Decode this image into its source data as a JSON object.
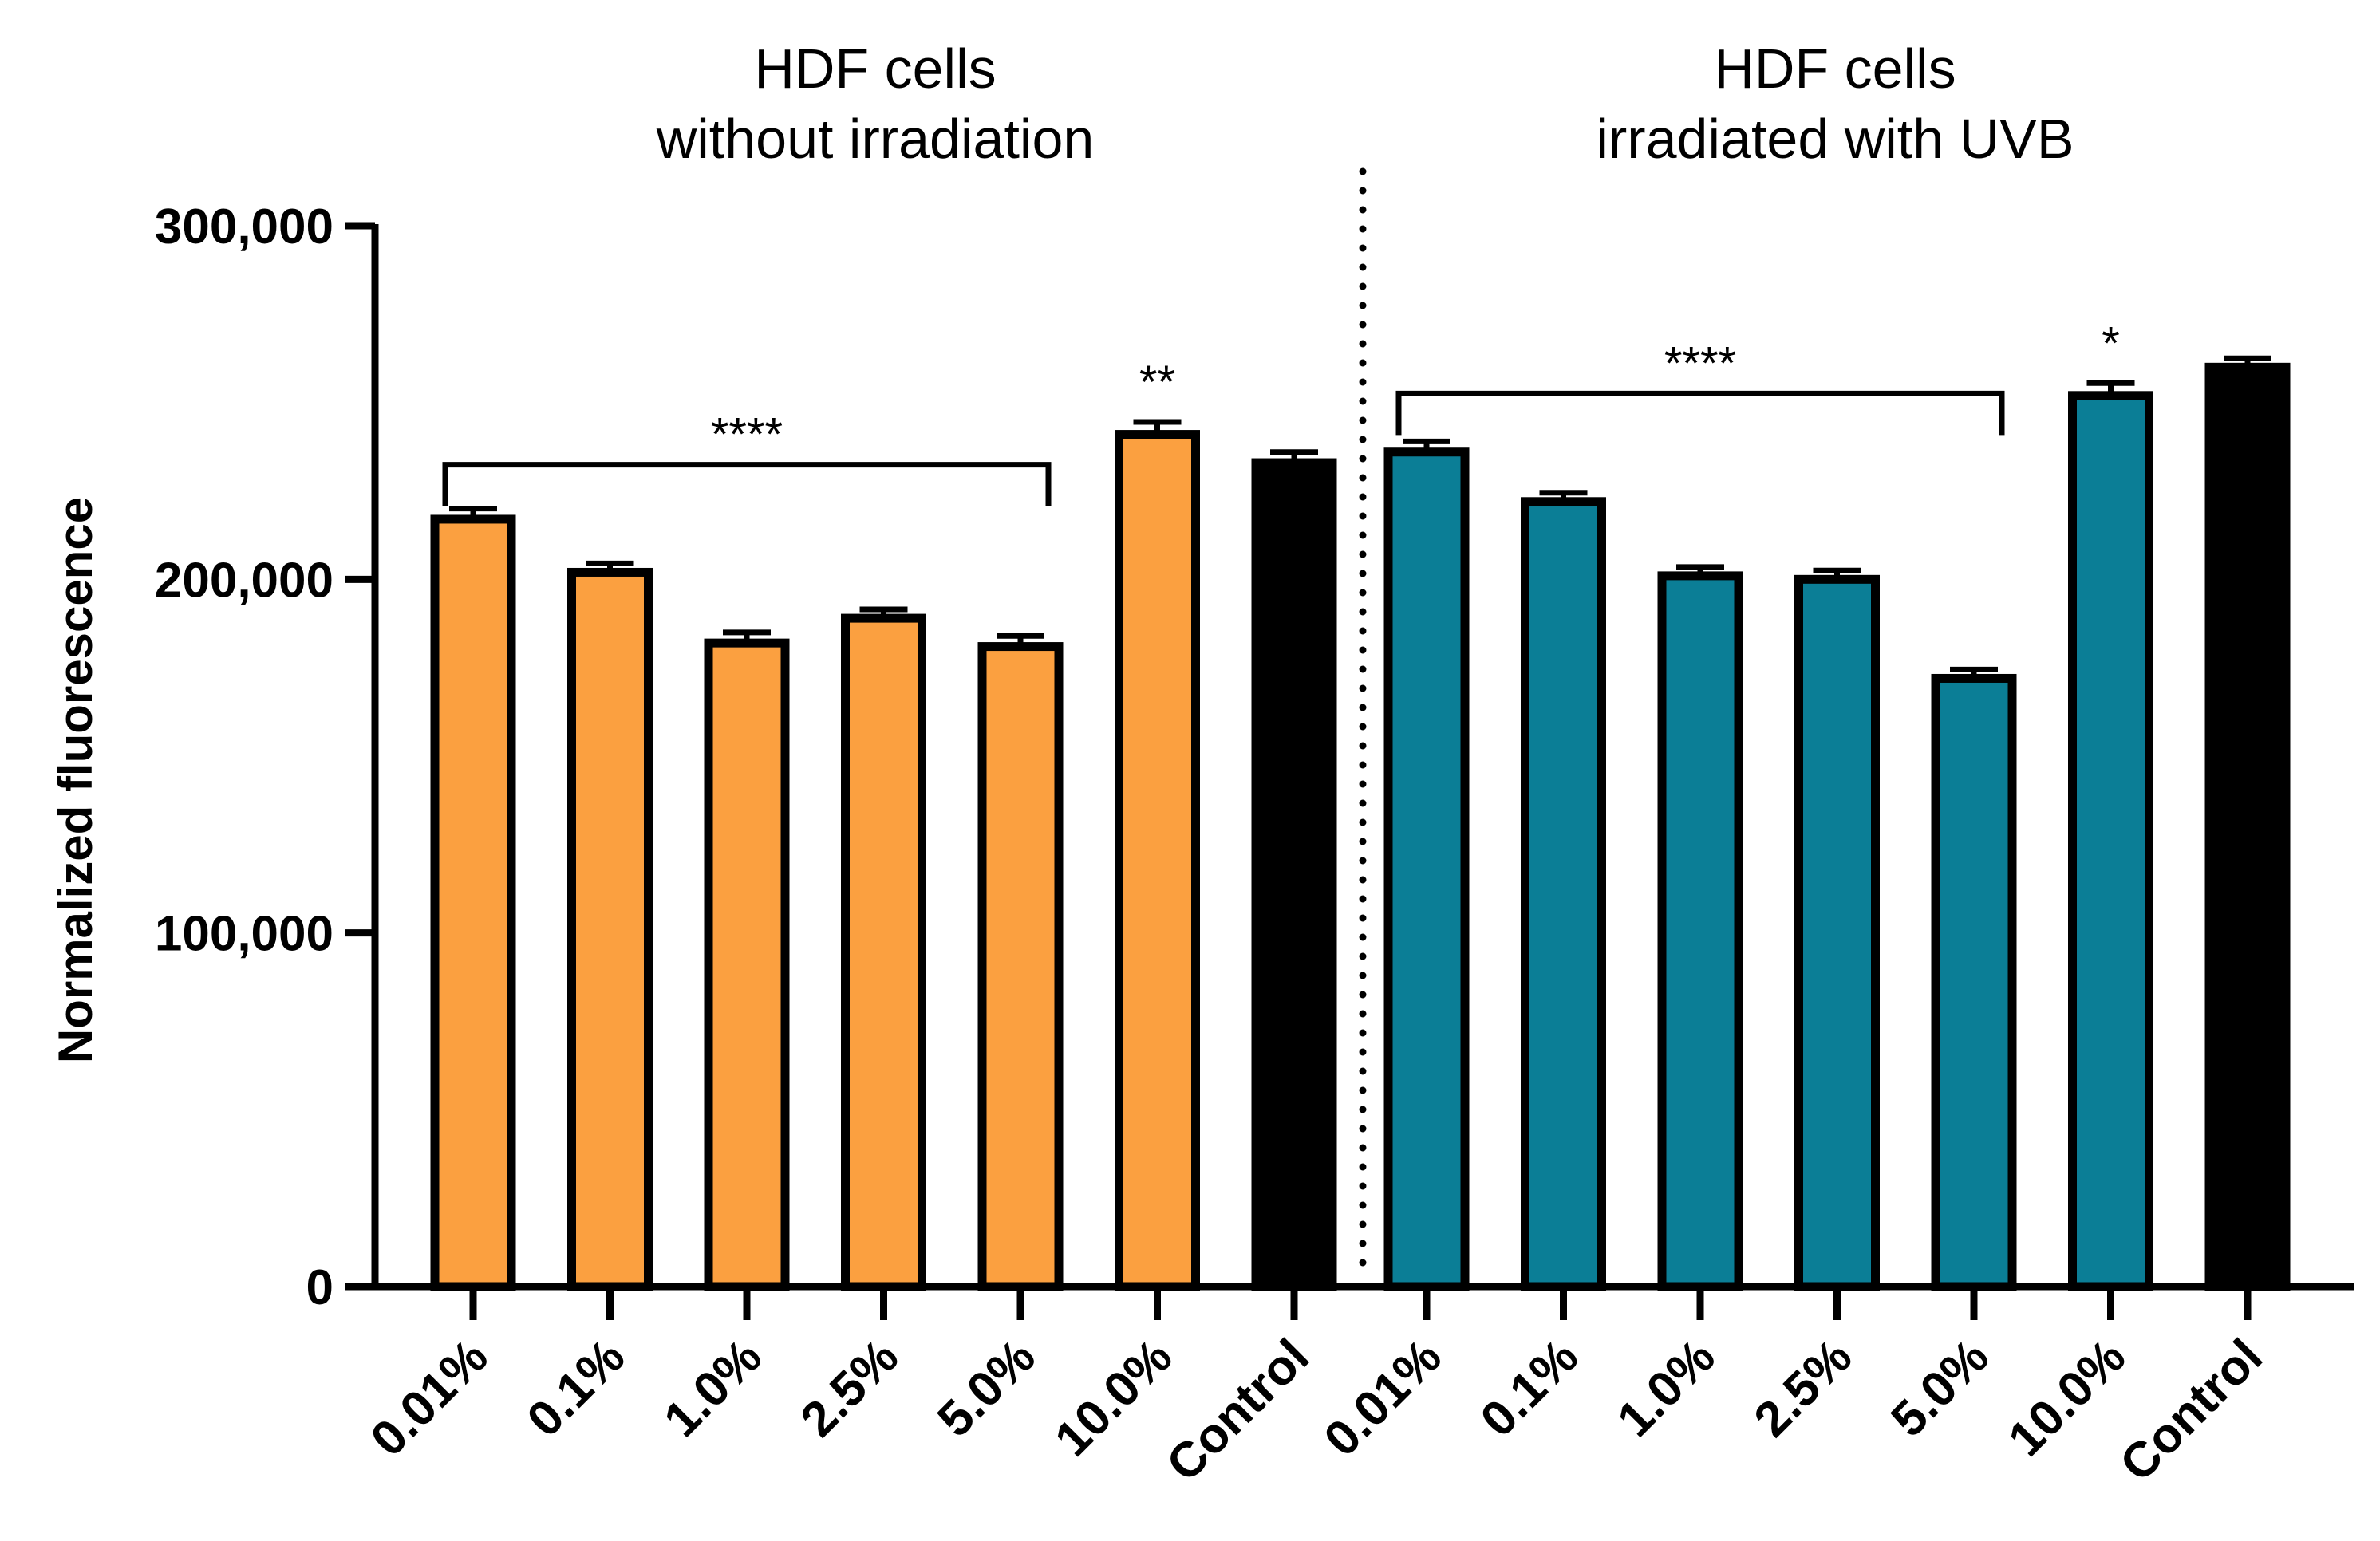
{
  "chart_data": {
    "type": "bar",
    "title": "",
    "xlabel": "",
    "ylabel": "Normalized fluorescence",
    "ylim": [
      0,
      300000
    ],
    "yticks": [
      0,
      100000,
      200000,
      300000
    ],
    "ytick_labels": [
      "0",
      "100,000",
      "200,000",
      "300,000"
    ],
    "groups": [
      {
        "title_line1": "HDF cells",
        "title_line2": "without irradiation",
        "categories": [
          "0.01%",
          "0.1%",
          "1.0%",
          "2.5%",
          "5.0%",
          "10.0%",
          "Control"
        ],
        "values": [
          217000,
          202000,
          182000,
          189000,
          181000,
          241000,
          233000
        ],
        "errors": [
          3000,
          2500,
          3000,
          2500,
          3000,
          3500,
          3000
        ],
        "colors": [
          "#FBA040",
          "#FBA040",
          "#FBA040",
          "#FBA040",
          "#FBA040",
          "#FBA040",
          "#000000"
        ],
        "bracket": {
          "from": 0,
          "to": 4,
          "label": "****"
        },
        "annotations": [
          {
            "index": 5,
            "label": "**"
          }
        ]
      },
      {
        "title_line1": "HDF cells",
        "title_line2": "irradiated with UVB",
        "categories": [
          "0.01%",
          "0.1%",
          "1.0%",
          "2.5%",
          "5.0%",
          "10.0%",
          "Control"
        ],
        "values": [
          236000,
          222000,
          201000,
          200000,
          172000,
          252000,
          260000
        ],
        "errors": [
          3000,
          2500,
          2500,
          2500,
          2500,
          3500,
          2500
        ],
        "colors": [
          "#0B7E96",
          "#0B7E96",
          "#0B7E96",
          "#0B7E96",
          "#0B7E96",
          "#0B7E96",
          "#000000"
        ],
        "bracket": {
          "from": 0,
          "to": 4,
          "label": "****"
        },
        "annotations": [
          {
            "index": 5,
            "label": "*"
          }
        ]
      }
    ]
  }
}
